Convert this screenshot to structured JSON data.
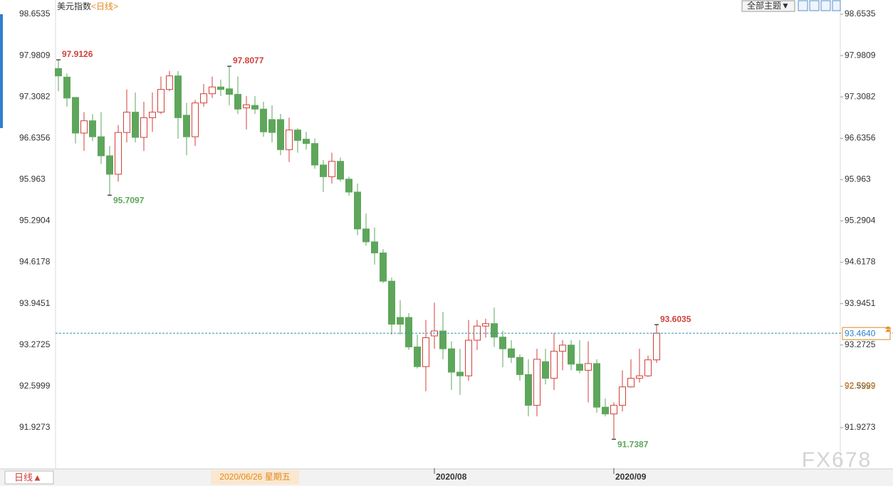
{
  "chart_data": {
    "type": "candlestick",
    "title": "美元指数",
    "subtitle": "<日线>",
    "theme_button": "全部主题▼",
    "period_button": "日线▲",
    "watermark": "FX678",
    "up_color": "#d0403a",
    "down_color": "#5ea65b",
    "ylim": [
      91.267,
      98.885
    ],
    "yticks": [
      98.6535,
      97.9809,
      97.3082,
      96.6356,
      95.963,
      95.2904,
      94.6178,
      93.9451,
      93.2725,
      92.5999,
      91.9273
    ],
    "categories": [
      null,
      null,
      null,
      null,
      null,
      null,
      null,
      null,
      null,
      null,
      null,
      null,
      null,
      null,
      null,
      null,
      null,
      null,
      null,
      null,
      null,
      null,
      null,
      "2020/06/26 星期五",
      null,
      null,
      null,
      null,
      null,
      null,
      null,
      null,
      null,
      null,
      null,
      null,
      null,
      null,
      null,
      null,
      null,
      null,
      null,
      null,
      "2020/08",
      null,
      null,
      null,
      null,
      null,
      null,
      null,
      null,
      null,
      null,
      null,
      null,
      null,
      null,
      null,
      null,
      null,
      null,
      null,
      null,
      "2020/09",
      null,
      null,
      null,
      null,
      null
    ],
    "open": [
      97.77,
      97.63,
      97.3,
      96.72,
      96.92,
      96.66,
      96.35,
      96.05,
      96.73,
      97.06,
      96.65,
      96.97,
      97.06,
      97.43,
      97.65,
      97.01,
      96.66,
      97.21,
      97.36,
      97.47,
      97.44,
      97.35,
      97.13,
      97.17,
      97.11,
      96.94,
      96.94,
      96.45,
      96.77,
      96.62,
      96.55,
      96.2,
      96.01,
      96.26,
      95.97,
      95.76,
      95.16,
      94.95,
      94.77,
      94.31,
      93.72,
      93.72,
      93.24,
      92.92,
      93.42,
      93.5,
      93.21,
      92.83,
      92.77,
      93.35,
      93.58,
      93.62,
      93.4,
      93.21,
      93.07,
      92.79,
      92.29,
      93.0,
      92.73,
      93.17,
      93.27,
      92.96,
      92.86,
      92.97,
      92.26,
      92.15,
      92.29,
      92.59,
      92.73,
      92.77,
      93.03
    ],
    "high": [
      97.9126,
      97.69,
      97.3,
      97.06,
      97.03,
      97.06,
      96.51,
      96.85,
      97.43,
      97.38,
      97.23,
      97.38,
      97.64,
      97.73,
      97.73,
      97.21,
      97.26,
      97.52,
      97.64,
      97.59,
      97.8077,
      97.64,
      97.32,
      97.32,
      97.23,
      97.17,
      97.03,
      96.97,
      96.8,
      96.74,
      96.63,
      96.28,
      96.4,
      96.32,
      96.01,
      95.9,
      95.41,
      95.18,
      94.83,
      94.37,
      94.0,
      93.79,
      93.44,
      93.68,
      93.96,
      93.81,
      93.33,
      93.21,
      93.68,
      93.68,
      93.7,
      93.88,
      93.5,
      93.35,
      93.12,
      93.04,
      93.21,
      93.21,
      93.47,
      93.35,
      93.35,
      93.35,
      93.33,
      93.04,
      92.4,
      92.34,
      92.86,
      93.04,
      93.21,
      93.1,
      93.6035
    ],
    "low": [
      97.4,
      97.15,
      96.55,
      96.43,
      96.59,
      96.22,
      95.7097,
      95.93,
      96.57,
      96.57,
      96.43,
      96.74,
      97.03,
      97.4,
      96.63,
      96.36,
      96.51,
      97.15,
      97.29,
      97.32,
      97.17,
      97.03,
      96.78,
      97.03,
      96.66,
      96.57,
      96.36,
      96.25,
      96.4,
      96.45,
      96.14,
      95.76,
      95.9,
      95.93,
      95.7,
      95.06,
      94.89,
      94.58,
      94.28,
      93.44,
      93.44,
      93.19,
      92.89,
      92.52,
      93.21,
      93.04,
      92.54,
      92.46,
      92.69,
      93.19,
      93.39,
      93.24,
      92.91,
      92.98,
      92.69,
      92.11,
      92.11,
      92.63,
      92.54,
      92.86,
      92.86,
      92.81,
      92.34,
      92.17,
      92.11,
      91.7387,
      92.19,
      92.58,
      92.66,
      92.75,
      92.98
    ],
    "close": [
      97.65,
      97.29,
      96.72,
      96.92,
      96.66,
      96.35,
      96.05,
      96.73,
      97.06,
      96.65,
      96.97,
      97.06,
      97.43,
      97.65,
      96.97,
      96.66,
      97.21,
      97.36,
      97.47,
      97.43,
      97.35,
      97.11,
      97.18,
      97.11,
      96.74,
      96.73,
      96.45,
      96.77,
      96.6,
      96.55,
      96.2,
      96.01,
      96.26,
      95.97,
      95.76,
      95.16,
      94.95,
      94.77,
      94.31,
      93.61,
      93.61,
      93.24,
      92.92,
      93.39,
      93.5,
      93.21,
      92.83,
      92.77,
      93.35,
      93.58,
      93.62,
      93.4,
      93.21,
      93.07,
      92.79,
      92.29,
      93.04,
      92.73,
      93.17,
      93.27,
      92.96,
      92.86,
      92.97,
      92.26,
      92.15,
      92.29,
      92.59,
      92.73,
      92.77,
      93.03,
      93.464
    ],
    "last_price": {
      "value": 93.464,
      "label": "93.4640"
    },
    "marker_price": {
      "value": 92.7229,
      "label": "92.7229"
    }
  }
}
